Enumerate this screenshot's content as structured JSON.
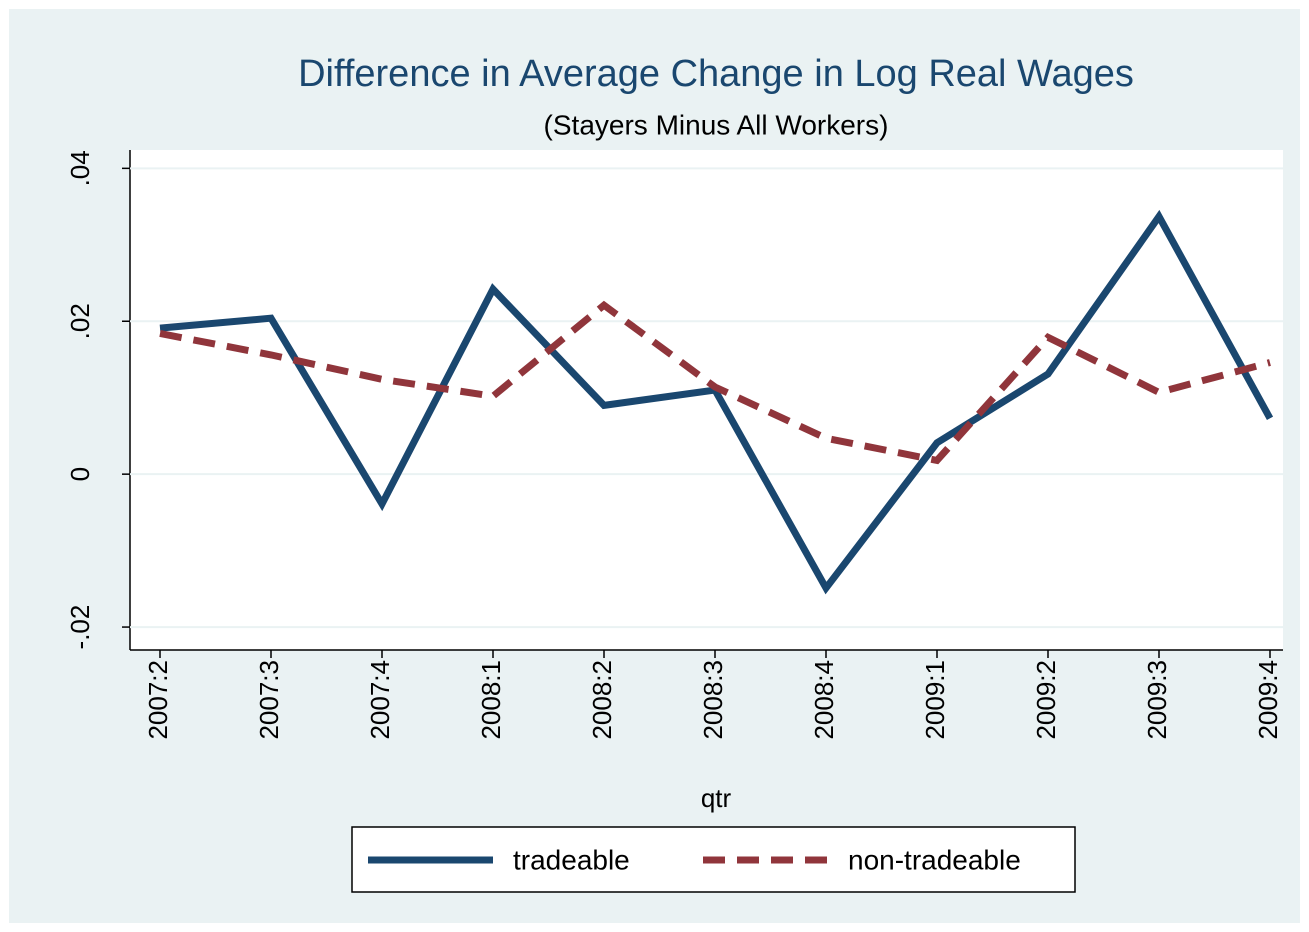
{
  "chart_data": {
    "type": "line",
    "title": "Difference in Average Change in Log Real Wages",
    "subtitle": "(Stayers Minus All Workers)",
    "x_label": "qtr",
    "categories": [
      "2007:2",
      "2007:3",
      "2007:4",
      "2008:1",
      "2008:2",
      "2008:3",
      "2008:4",
      "2009:1",
      "2009:2",
      "2009:3",
      "2009:4"
    ],
    "series": [
      {
        "name": "tradeable",
        "color": "#1a476f",
        "dash": "solid",
        "values": [
          0.0191,
          0.0204,
          -0.0039,
          0.0242,
          0.009,
          0.011,
          -0.0149,
          0.0041,
          0.0131,
          0.0337,
          0.0073
        ]
      },
      {
        "name": "non-tradeable",
        "color": "#90353b",
        "dash": "dashed",
        "values": [
          0.0184,
          0.0156,
          0.0124,
          0.0102,
          0.0221,
          0.0114,
          0.0047,
          0.0018,
          0.0179,
          0.0107,
          0.0146
        ]
      }
    ],
    "ylim": [
      -0.023,
      0.0424
    ],
    "yticks": [
      {
        "value": -0.02,
        "label": "-.02"
      },
      0,
      {
        "value": 0.02,
        "label": ".02"
      },
      {
        "value": 0.04,
        "label": ".04"
      }
    ],
    "grid": true,
    "legend": "bottom"
  }
}
